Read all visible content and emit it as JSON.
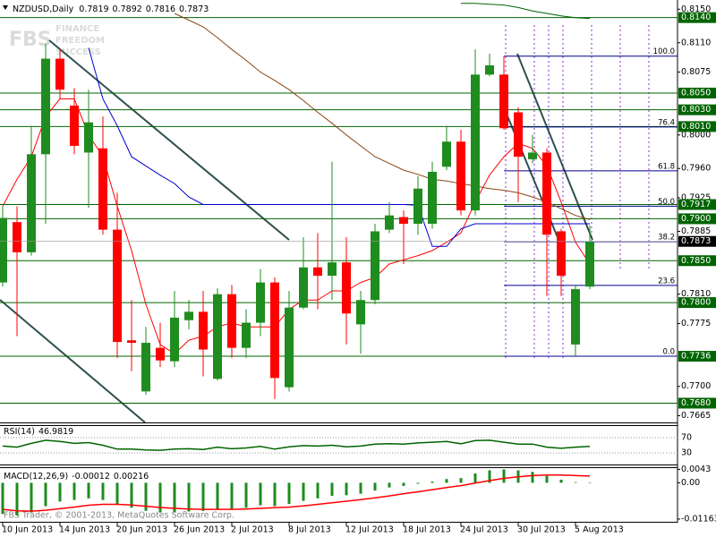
{
  "chart_data": {
    "type": "candlestick",
    "title": "NZDUSD,Daily",
    "categories": [
      "10 Jun 2013",
      null,
      null,
      null,
      "14 Jun 2013",
      null,
      null,
      null,
      "20 Jun 2013",
      null,
      null,
      null,
      "26 Jun 2013",
      null,
      null,
      null,
      "2 Jul 2013",
      null,
      null,
      null,
      "8 Jul 2013",
      null,
      null,
      null,
      "12 Jul 2013",
      null,
      null,
      null,
      "18 Jul 2013",
      null,
      null,
      null,
      "24 Jul 2013",
      null,
      null,
      null,
      "30 Jul 2013",
      null,
      null,
      null,
      "5 Aug 2013",
      null
    ],
    "open": [
      0.7824,
      0.7896,
      0.786,
      0.7977,
      0.8091,
      0.8035,
      0.7979,
      0.7984,
      0.7887,
      0.7755,
      0.7694,
      0.7746,
      0.773,
      0.7779,
      0.7789,
      0.7709,
      0.781,
      0.7746,
      0.7776,
      0.7824,
      0.7699,
      0.7794,
      0.7842,
      0.7832,
      0.7848,
      0.7774,
      0.7803,
      0.7887,
      0.7902,
      0.7894,
      0.7894,
      0.7962,
      0.7992,
      0.791,
      0.8072,
      0.8072,
      0.8027,
      0.7971,
      0.7979,
      0.7885,
      0.775,
      0.7819
    ],
    "high": [
      0.7915,
      0.7915,
      0.8011,
      0.8109,
      0.8102,
      0.8056,
      0.8054,
      0.8022,
      0.7931,
      0.7803,
      0.7771,
      0.7776,
      0.7814,
      0.7803,
      0.7814,
      0.7817,
      0.7821,
      0.7792,
      0.784,
      0.783,
      0.7814,
      0.7878,
      0.7883,
      0.7968,
      0.7878,
      0.7814,
      0.7894,
      0.792,
      0.791,
      0.7951,
      0.7968,
      0.8011,
      0.8006,
      0.8102,
      0.8097,
      0.8094,
      0.8033,
      0.8,
      0.7984,
      0.7888,
      0.7821,
      0.7892
    ],
    "low": [
      0.7819,
      0.776,
      0.7856,
      0.7894,
      0.8043,
      0.7977,
      0.7913,
      0.7881,
      0.7734,
      0.7718,
      0.769,
      0.7723,
      0.7723,
      0.7768,
      0.7712,
      0.7707,
      0.7734,
      0.7734,
      0.776,
      0.7685,
      0.7694,
      0.7792,
      0.7792,
      0.7803,
      0.775,
      0.7739,
      0.7798,
      0.7883,
      0.7846,
      0.7881,
      0.7888,
      0.7958,
      0.7904,
      0.7904,
      0.807,
      0.8006,
      0.792,
      0.7966,
      0.7808,
      0.7808,
      0.7736,
      0.7816
    ],
    "close": [
      0.7901,
      0.786,
      0.7977,
      0.8091,
      0.8054,
      0.7987,
      0.8015,
      0.7887,
      0.7753,
      0.7752,
      0.7752,
      0.7731,
      0.7782,
      0.7789,
      0.7744,
      0.781,
      0.7746,
      0.7776,
      0.7824,
      0.771,
      0.7794,
      0.7842,
      0.7832,
      0.7848,
      0.7787,
      0.7803,
      0.7885,
      0.7904,
      0.7894,
      0.7936,
      0.7956,
      0.7992,
      0.791,
      0.8072,
      0.8083,
      0.8008,
      0.7974,
      0.7979,
      0.7881,
      0.7832,
      0.7816,
      0.7873
    ],
    "up_color": "#1e8c1e",
    "down_color": "#ff0000",
    "last_price_color": "#000000",
    "ylim": [
      0.7657,
      0.8161
    ],
    "yticks": [
      {
        "value": 0.815,
        "label": "0.8150"
      },
      {
        "value": 0.811,
        "label": "0.8110"
      },
      0.8075,
      {
        "value": 0.8,
        "label": "0.8000"
      },
      {
        "value": 0.796,
        "label": "0.7960"
      },
      0.7925,
      0.7885,
      {
        "value": 0.781,
        "label": "0.7810"
      },
      0.7775,
      {
        "value": 0.77,
        "label": "0.7700"
      },
      0.7665
    ],
    "levels": [
      {
        "value": 0.814,
        "label": "0.8140"
      },
      {
        "value": 0.805,
        "label": "0.8050"
      },
      {
        "value": 0.803,
        "label": "0.8030"
      },
      {
        "value": 0.801,
        "label": "0.8010"
      },
      0.7917,
      {
        "value": 0.79,
        "label": "0.7900"
      },
      {
        "value": 0.785,
        "label": "0.7850"
      },
      {
        "value": 0.78,
        "label": "0.7800"
      },
      0.7736,
      {
        "value": 0.768,
        "label": "0.7680"
      }
    ],
    "level_color": "#006400",
    "fibo": {
      "high": 0.8094,
      "low": 0.7736,
      "color": "#00008b",
      "levels": [
        {
          "value": 100,
          "label": "100.0"
        },
        76.4,
        61.8,
        {
          "value": 50,
          "label": "50.0"
        },
        38.2,
        23.6,
        {
          "value": 0,
          "label": "0.0"
        }
      ]
    },
    "moving_averages": [
      {
        "color": "#ff0000",
        "values": [
          0.7915,
          0.7947,
          0.7974,
          0.8022,
          0.8043,
          0.8043,
          0.8,
          0.7974,
          0.7915,
          0.7862,
          0.7798,
          0.775,
          0.7739,
          0.7755,
          0.776,
          0.7771,
          0.7776,
          0.7771,
          0.7771,
          0.7771,
          0.7792,
          0.7803,
          0.7803,
          0.7814,
          0.7814,
          0.7824,
          0.783,
          0.7846,
          0.7851,
          0.7856,
          0.7862,
          0.7872,
          0.7883,
          0.792,
          0.7952,
          0.7974,
          0.799,
          0.7984,
          0.7963,
          0.792,
          0.7872,
          0.7846
        ]
      },
      {
        "color": "#0000cd",
        "values": [
          null,
          null,
          null,
          null,
          null,
          null,
          0.8104,
          0.8043,
          0.8011,
          0.7974,
          0.7963,
          0.7952,
          0.7942,
          0.7926,
          0.7917,
          0.7917,
          0.7917,
          0.7917,
          0.7917,
          0.7917,
          0.7917,
          0.7917,
          0.7917,
          0.7917,
          0.7917,
          0.7917,
          0.7917,
          0.7917,
          0.7917,
          0.7916,
          0.7867,
          0.7867,
          0.7888,
          0.7894,
          0.7894,
          0.7894,
          0.7894,
          0.7894,
          0.7894,
          0.7894,
          0.7894,
          0.7894
        ]
      },
      {
        "color": "#8b4513",
        "values": [
          null,
          null,
          null,
          null,
          null,
          null,
          null,
          null,
          null,
          null,
          null,
          null,
          0.8145,
          0.8137,
          0.8129,
          0.8116,
          0.8102,
          0.8089,
          0.8075,
          0.8065,
          0.8054,
          0.8041,
          0.8027,
          0.8014,
          0.8,
          0.7987,
          0.7974,
          0.7966,
          0.7958,
          0.7953,
          0.7947,
          0.7945,
          0.7942,
          0.7939,
          0.7936,
          0.7934,
          0.7931,
          0.7926,
          0.792,
          0.7912,
          0.7904,
          0.7899
        ]
      },
      {
        "color": "#006400",
        "values": [
          null,
          null,
          null,
          null,
          null,
          null,
          null,
          null,
          null,
          null,
          null,
          null,
          null,
          null,
          null,
          null,
          null,
          null,
          null,
          null,
          null,
          null,
          null,
          null,
          null,
          null,
          null,
          null,
          null,
          null,
          null,
          null,
          0.8157,
          0.8157,
          0.8156,
          0.8155,
          0.8152,
          0.8148,
          0.8145,
          0.8142,
          0.814,
          0.8139
        ]
      }
    ],
    "indicators": [
      {
        "type": "rsi",
        "title": "RSI(14)",
        "color": "#006400",
        "ylim": [
          0,
          100
        ],
        "yticks": [
          70,
          30
        ],
        "values": [
          48,
          45,
          55,
          63,
          60,
          55,
          57,
          50,
          40,
          40,
          38,
          37,
          40,
          41,
          39,
          45,
          41,
          43,
          47,
          40,
          46,
          49,
          48,
          50,
          46,
          48,
          53,
          54,
          53,
          56,
          58,
          60,
          54,
          62,
          63,
          58,
          53,
          53,
          45,
          42,
          45,
          46.9819
        ]
      },
      {
        "type": "macd",
        "title": "MACD(12,26,9)",
        "color": "#1e8c1e",
        "signal_color": "#ff0000",
        "ylim": [
          -0.0125,
          0.005
        ],
        "yticks": [
          0.0043,
          {
            "value": 0,
            "label": "0.00"
          },
          -0.01163
        ],
        "values": [
          -0.01,
          -0.0105,
          -0.0095,
          -0.0075,
          -0.006,
          -0.0055,
          -0.005,
          -0.0055,
          -0.007,
          -0.008,
          -0.009,
          -0.0095,
          -0.0095,
          -0.0092,
          -0.009,
          -0.0085,
          -0.0083,
          -0.008,
          -0.0072,
          -0.0075,
          -0.0068,
          -0.0058,
          -0.005,
          -0.0042,
          -0.004,
          -0.0035,
          -0.0025,
          -0.0015,
          -0.001,
          -0.0003,
          0.0004,
          0.0012,
          0.0015,
          0.003,
          0.004,
          0.0043,
          0.004,
          0.0035,
          0.0022,
          0.001,
          0.0002,
          -0.00012
        ],
        "signal": [
          -0.0085,
          -0.009,
          -0.0091,
          -0.0088,
          -0.0083,
          -0.0078,
          -0.0072,
          -0.0069,
          -0.0069,
          -0.0071,
          -0.0075,
          -0.0079,
          -0.0082,
          -0.0084,
          -0.0085,
          -0.0085,
          -0.0085,
          -0.0084,
          -0.0082,
          -0.008,
          -0.0078,
          -0.0074,
          -0.0069,
          -0.0064,
          -0.0059,
          -0.0054,
          -0.0048,
          -0.0042,
          -0.0035,
          -0.0029,
          -0.0022,
          -0.0015,
          -0.0009,
          -0.0001,
          0.0007,
          0.0014,
          0.0019,
          0.0023,
          0.0025,
          0.0025,
          0.0023,
          0.00216
        ]
      }
    ],
    "watermark": {
      "brand": "FBS",
      "lines": [
        "FINANCE",
        "FREEDOM",
        "SUCCESS"
      ]
    },
    "footer": "FBS Trader, © 2001-2013, MetaQuotes Software Corp."
  }
}
